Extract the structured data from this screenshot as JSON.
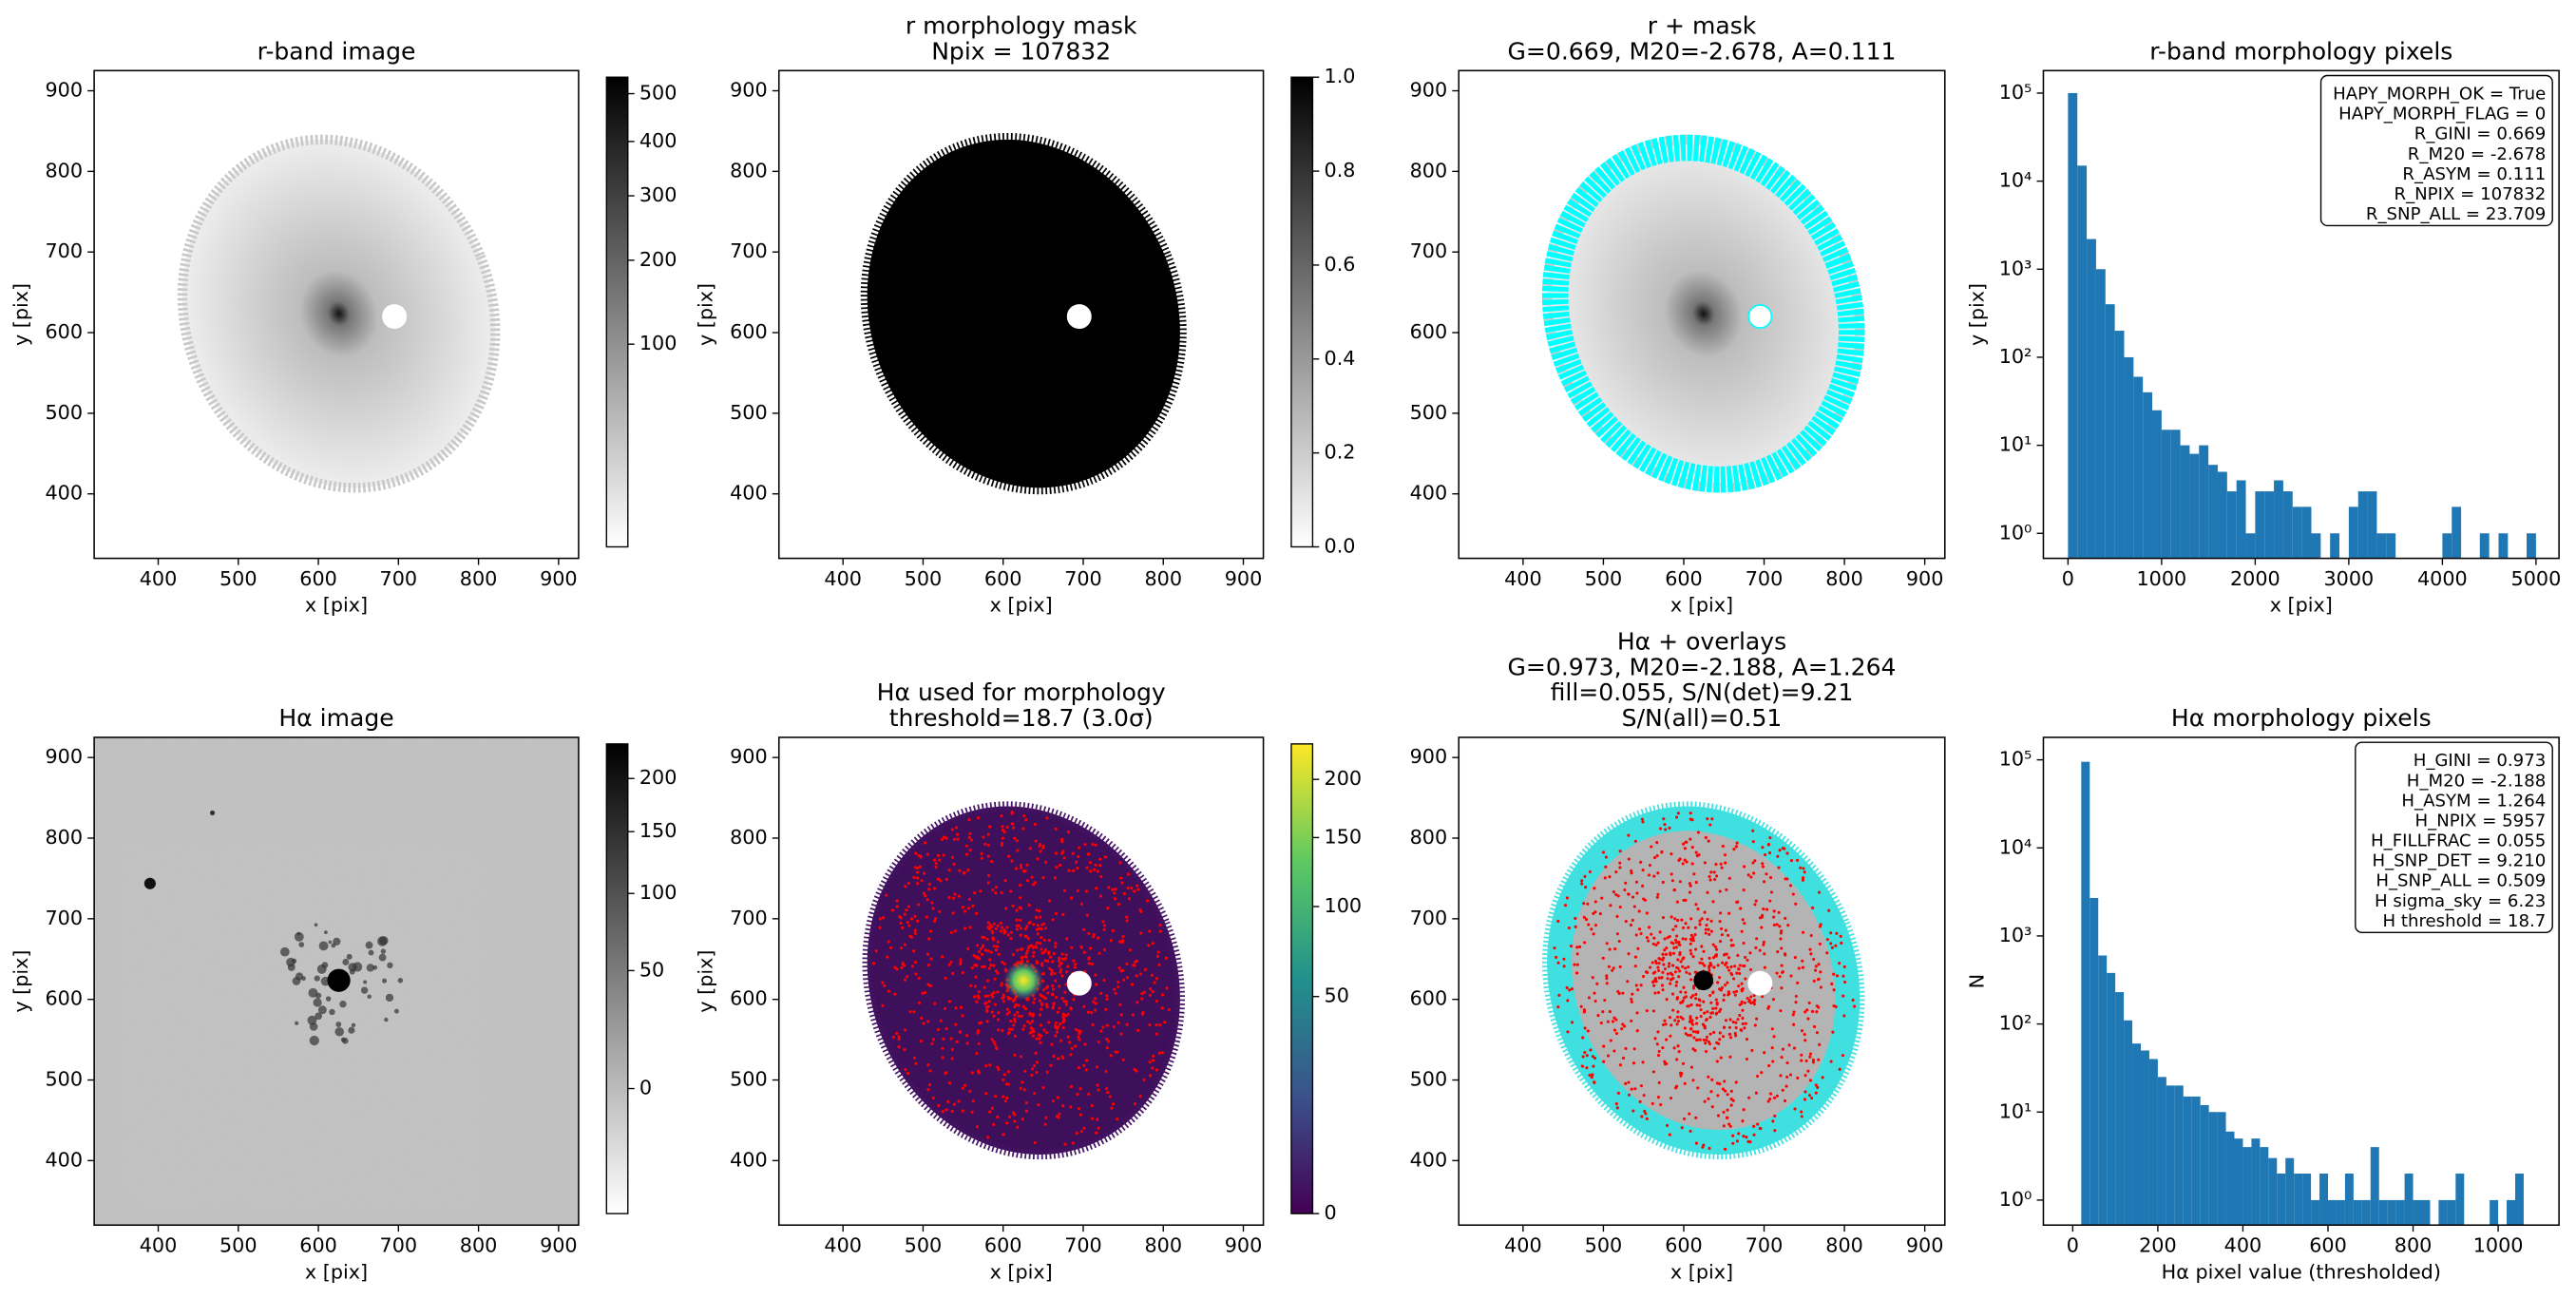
{
  "chart_data": [
    {
      "type": "image",
      "title": [
        "r-band image"
      ],
      "xlabel": "x [pix]",
      "ylabel": "y [pix]",
      "xlim": [
        320,
        925
      ],
      "ylim": [
        320,
        925
      ],
      "xticks": [
        400,
        500,
        600,
        700,
        800,
        900
      ],
      "yticks": [
        400,
        500,
        600,
        700,
        800,
        900
      ],
      "marker": {
        "x": 695,
        "y": 620,
        "color": "#ffffff",
        "edgecolor": "#ffffff"
      },
      "colorbar": {
        "cmap": "gray_r",
        "stretch": "sqrt",
        "clim": [
          0,
          537
        ],
        "ticks": [
          100,
          200,
          300,
          400,
          500
        ]
      }
    },
    {
      "type": "image",
      "title": [
        "r morphology mask",
        "Npix = 107832"
      ],
      "xlabel": "x [pix]",
      "ylabel": "y [pix]",
      "xlim": [
        320,
        925
      ],
      "ylim": [
        320,
        925
      ],
      "xticks": [
        400,
        500,
        600,
        700,
        800,
        900
      ],
      "yticks": [
        400,
        500,
        600,
        700,
        800,
        900
      ],
      "marker": {
        "x": 695,
        "y": 620,
        "color": "#ffffff",
        "edgecolor": "#ffffff"
      },
      "colorbar": {
        "cmap": "gray_r",
        "stretch": "linear",
        "clim": [
          0,
          1
        ],
        "ticks": [
          {
            "value": 0,
            "label": "0.0"
          },
          0.2,
          0.4,
          0.6,
          0.8,
          {
            "value": 1,
            "label": "1.0"
          }
        ]
      }
    },
    {
      "type": "image",
      "title": [
        "r + mask",
        "G=0.669, M20=-2.678, A=0.111"
      ],
      "xlabel": "x [pix]",
      "xlim": [
        320,
        925
      ],
      "ylim": [
        320,
        925
      ],
      "xticks": [
        400,
        500,
        600,
        700,
        800,
        900
      ],
      "yticks": [
        400,
        500,
        600,
        700,
        800,
        900
      ],
      "marker": {
        "x": 695,
        "y": 620,
        "color": "#ffffff",
        "edgecolor": "#00ffff"
      }
    },
    {
      "type": "histogram",
      "title": [
        "r-band morphology pixels"
      ],
      "xlabel": "x [pix]",
      "ylabel": "y [pix]",
      "color": "#1f77b4",
      "yscale": "log",
      "xlim": [
        -263,
        5246
      ],
      "ylim": [
        0.52,
        180000
      ],
      "xticks": [
        0,
        1000,
        2000,
        3000,
        4000,
        5000
      ],
      "yticks": [
        {
          "value": 1,
          "label": "10⁰"
        },
        {
          "value": 10,
          "label": "10¹"
        },
        {
          "value": 100,
          "label": "10²"
        },
        {
          "value": 1000,
          "label": "10³"
        },
        {
          "value": 10000,
          "label": "10⁴"
        },
        {
          "value": 100000,
          "label": "10⁵"
        }
      ],
      "bins": [
        0,
        100,
        200,
        300,
        400,
        500,
        600,
        700,
        800,
        900,
        1000,
        1100,
        1200,
        1300,
        1400,
        1500,
        1600,
        1700,
        1800,
        1900,
        2000,
        2100,
        2200,
        2300,
        2400,
        2500,
        2600,
        2700,
        2800,
        2900,
        3000,
        3100,
        3200,
        3300,
        3400,
        3500,
        3600,
        3700,
        3800,
        3900,
        4000,
        4100,
        4200,
        4300,
        4400,
        4500,
        4600,
        4700,
        4800,
        4900,
        5000
      ],
      "counts": [
        100000,
        15000,
        2200,
        1000,
        400,
        200,
        100,
        60,
        40,
        25,
        15,
        15,
        10,
        8,
        10,
        6,
        5,
        3,
        4,
        1,
        3,
        3,
        4,
        3,
        2,
        2,
        1,
        0,
        1,
        0,
        2,
        3,
        3,
        1,
        1,
        0,
        0,
        0,
        0,
        0,
        1,
        2,
        0,
        0,
        1,
        0,
        1,
        0,
        0,
        1
      ],
      "annotation": [
        "HAPY_MORPH_OK = True",
        "HAPY_MORPH_FLAG = 0",
        "R_GINI = 0.669",
        "R_M20 = -2.678",
        "R_ASYM = 0.111",
        "R_NPIX = 107832",
        "R_SNP_ALL = 23.709"
      ]
    },
    {
      "type": "image",
      "title": [
        "Hα image"
      ],
      "xlabel": "x [pix]",
      "ylabel": "y [pix]",
      "xlim": [
        320,
        925
      ],
      "ylim": [
        320,
        925
      ],
      "xticks": [
        400,
        500,
        600,
        700,
        800,
        900
      ],
      "yticks": [
        400,
        500,
        600,
        700,
        800,
        900
      ],
      "colorbar": {
        "cmap": "gray_r",
        "stretch": "sqrt",
        "clim": [
          -18,
          236
        ],
        "ticks": [
          0,
          50,
          100,
          150,
          200
        ]
      }
    },
    {
      "type": "image",
      "title": [
        "Hα used for morphology",
        "threshold=18.7 (3.0σ)"
      ],
      "xlabel": "x [pix]",
      "ylabel": "y [pix]",
      "xlim": [
        320,
        925
      ],
      "ylim": [
        320,
        925
      ],
      "xticks": [
        400,
        500,
        600,
        700,
        800,
        900
      ],
      "yticks": [
        400,
        500,
        600,
        700,
        800,
        900
      ],
      "marker": {
        "x": 695,
        "y": 620,
        "color": "#ffffff",
        "edgecolor": "#ffffff"
      },
      "colorbar": {
        "cmap": "viridis",
        "stretch": "sqrt",
        "clim": [
          0,
          234
        ],
        "ticks": [
          0,
          50,
          100,
          150,
          200
        ]
      }
    },
    {
      "type": "image",
      "title": [
        "Hα + overlays",
        "G=0.973, M20=-2.188, A=1.264",
        "fill=0.055, S/N(det)=9.21",
        "S/N(all)=0.51"
      ],
      "xlabel": "x [pix]",
      "xlim": [
        320,
        925
      ],
      "ylim": [
        320,
        925
      ],
      "xticks": [
        400,
        500,
        600,
        700,
        800,
        900
      ],
      "yticks": [
        400,
        500,
        600,
        700,
        800,
        900
      ],
      "marker": {
        "x": 695,
        "y": 620,
        "color": "#ffffff",
        "edgecolor": "#ffffff"
      }
    },
    {
      "type": "histogram",
      "title": [
        "Hα morphology pixels"
      ],
      "xlabel": "Hα pixel value (thresholded)",
      "ylabel": "N",
      "color": "#1f77b4",
      "yscale": "log",
      "xlim": [
        -69,
        1143
      ],
      "ylim": [
        0.52,
        180000
      ],
      "xticks": [
        0,
        200,
        400,
        600,
        800,
        1000
      ],
      "yticks": [
        {
          "value": 1,
          "label": "10⁰"
        },
        {
          "value": 10,
          "label": "10¹"
        },
        {
          "value": 100,
          "label": "10²"
        },
        {
          "value": 1000,
          "label": "10³"
        },
        {
          "value": 10000,
          "label": "10⁴"
        },
        {
          "value": 100000,
          "label": "10⁵"
        }
      ],
      "bins": [
        20,
        40,
        60,
        80,
        100,
        120,
        140,
        160,
        180,
        200,
        220,
        240,
        260,
        280,
        300,
        320,
        340,
        360,
        380,
        400,
        420,
        440,
        460,
        480,
        500,
        520,
        540,
        560,
        580,
        600,
        620,
        640,
        660,
        680,
        700,
        720,
        740,
        760,
        780,
        800,
        820,
        840,
        860,
        880,
        900,
        920,
        940,
        960,
        980,
        1000,
        1020,
        1040,
        1060
      ],
      "counts": [
        95000,
        2700,
        600,
        380,
        230,
        110,
        60,
        50,
        40,
        25,
        20,
        20,
        15,
        15,
        12,
        10,
        10,
        6,
        5,
        4,
        5,
        4,
        3,
        2,
        3,
        2,
        2,
        1,
        2,
        1,
        1,
        2,
        1,
        1,
        4,
        1,
        1,
        1,
        2,
        1,
        1,
        0,
        1,
        1,
        2,
        0,
        0,
        0,
        1,
        0,
        1,
        2
      ],
      "annotation": [
        "H_GINI = 0.973",
        "H_M20 = -2.188",
        "H_ASYM = 1.264",
        "H_NPIX = 5957",
        "H_FILLFRAC = 0.055",
        "H_SNP_DET = 9.210",
        "H_SNP_ALL = 0.509",
        "H sigma_sky = 6.23",
        "H threshold = 18.7"
      ]
    }
  ]
}
